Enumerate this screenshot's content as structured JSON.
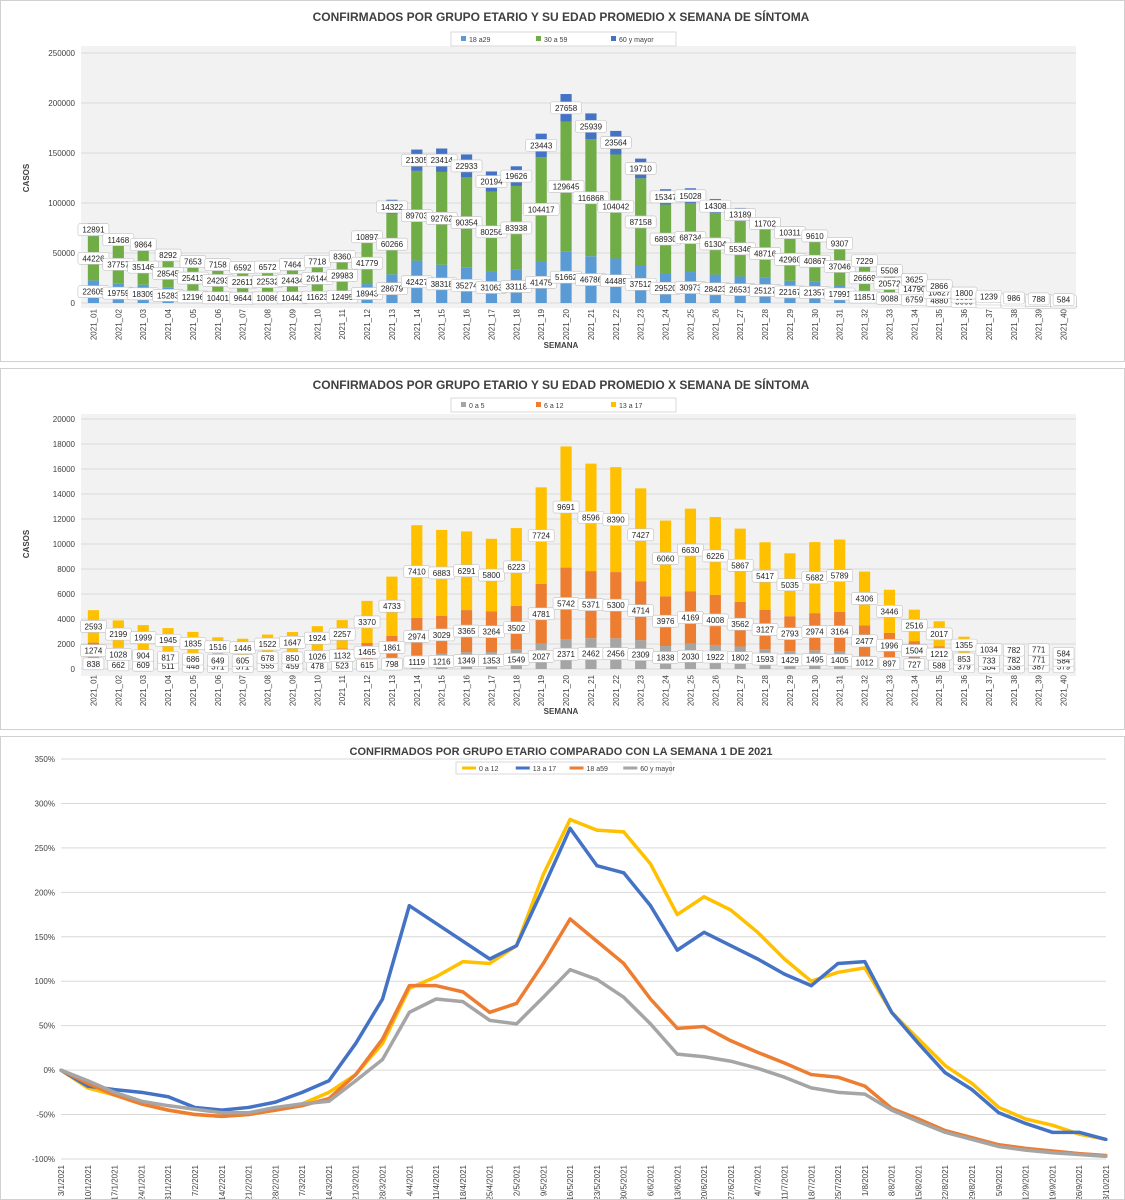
{
  "chart_data": [
    {
      "type": "bar",
      "stacked": true,
      "title": "CONFIRMADOS POR GRUPO ETARIO Y SU EDAD PROMEDIO X SEMANA DE SÍNTOMA",
      "xlabel": "SEMANA",
      "ylabel": "CASOS",
      "ylim": [
        0,
        250000
      ],
      "yticks": [
        "0",
        "50000",
        "100000",
        "150000",
        "200000",
        "250000"
      ],
      "grid": true,
      "legend_position": "top",
      "categories": [
        "2021_01",
        "2021_02",
        "2021_03",
        "2021_04",
        "2021_05",
        "2021_06",
        "2021_07",
        "2021_08",
        "2021_09",
        "2021_10",
        "2021_11",
        "2021_12",
        "2021_13",
        "2021_14",
        "2021_15",
        "2021_16",
        "2021_17",
        "2021_18",
        "2021_19",
        "2021_20",
        "2021_21",
        "2021_22",
        "2021_23",
        "2021_24",
        "2021_25",
        "2021_26",
        "2021_27",
        "2021_28",
        "2021_29",
        "2021_30",
        "2021_31",
        "2021_32",
        "2021_33",
        "2021_34",
        "2021_35",
        "2021_36",
        "2021_37",
        "2021_38",
        "2021_39",
        "2021_40"
      ],
      "series": [
        {
          "name": "18 a29",
          "color": "#5b9bd5",
          "values": [
            22605,
            19759,
            18309,
            15283,
            12196,
            10401,
            9644,
            10086,
            10442,
            11623,
            12495,
            18943,
            28679,
            42427,
            38318,
            35274,
            31063,
            33118,
            41475,
            51662,
            46786,
            44489,
            37512,
            29520,
            30973,
            28423,
            26531,
            25127,
            22167,
            21357,
            17991,
            11851,
            9088,
            6759,
            4880,
            3000,
            2000,
            1500,
            1200,
            1000
          ]
        },
        {
          "name": "30 a 59",
          "color": "#70ad47",
          "values": [
            44226,
            37757,
            35146,
            28545,
            25413,
            24293,
            22611,
            22532,
            24434,
            26144,
            29983,
            41779,
            60266,
            89703,
            92762,
            90354,
            80256,
            83938,
            104417,
            129645,
            116868,
            104042,
            87158,
            68930,
            68734,
            61304,
            55346,
            48716,
            42960,
            40867,
            37046,
            26669,
            20572,
            14790,
            10827,
            6000,
            4000,
            3000,
            2500,
            2000
          ]
        },
        {
          "name": "60 y mayor",
          "color": "#4472c4",
          "values": [
            12891,
            11468,
            9864,
            8292,
            7653,
            7158,
            6592,
            6572,
            7464,
            7718,
            8360,
            10897,
            14322,
            21305,
            23414,
            22933,
            20194,
            19626,
            23443,
            27658,
            25939,
            23564,
            19710,
            15347,
            15028,
            14308,
            13189,
            11702,
            10311,
            9610,
            9307,
            7229,
            5508,
            3625,
            2866,
            1800,
            1239,
            986,
            788,
            584
          ]
        }
      ]
    },
    {
      "type": "bar",
      "stacked": true,
      "title": "CONFIRMADOS POR GRUPO ETARIO Y SU EDAD PROMEDIO X SEMANA DE SÍNTOMA",
      "xlabel": "SEMANA",
      "ylabel": "CASOS",
      "ylim": [
        0,
        20000
      ],
      "yticks": [
        "0",
        "2000",
        "4000",
        "6000",
        "8000",
        "10000",
        "12000",
        "14000",
        "16000",
        "18000",
        "20000"
      ],
      "grid": true,
      "legend_position": "top",
      "categories": [
        "2021_01",
        "2021_02",
        "2021_03",
        "2021_04",
        "2021_05",
        "2021_06",
        "2021_07",
        "2021_08",
        "2021_09",
        "2021_10",
        "2021_11",
        "2021_12",
        "2021_13",
        "2021_14",
        "2021_15",
        "2021_16",
        "2021_17",
        "2021_18",
        "2021_19",
        "2021_20",
        "2021_21",
        "2021_22",
        "2021_23",
        "2021_24",
        "2021_25",
        "2021_26",
        "2021_27",
        "2021_28",
        "2021_29",
        "2021_30",
        "2021_31",
        "2021_32",
        "2021_33",
        "2021_34",
        "2021_35",
        "2021_36",
        "2021_37",
        "2021_38",
        "2021_39",
        "2021_40"
      ],
      "series": [
        {
          "name": "0 a 5",
          "color": "#a5a5a5",
          "values": [
            838,
            662,
            609,
            511,
            448,
            371,
            371,
            555,
            459,
            478,
            523,
            615,
            798,
            1119,
            1216,
            1349,
            1353,
            1549,
            2027,
            2371,
            2462,
            2456,
            2309,
            1838,
            2030,
            1922,
            1802,
            1593,
            1429,
            1495,
            1405,
            1012,
            897,
            727,
            588,
            379,
            304,
            338,
            387,
            379
          ]
        },
        {
          "name": "6 a 12",
          "color": "#ed7d31",
          "values": [
            1274,
            1028,
            904,
            817,
            686,
            649,
            605,
            678,
            850,
            1026,
            1132,
            1465,
            1861,
            2974,
            3029,
            3365,
            3264,
            3502,
            4781,
            5742,
            5371,
            5300,
            4714,
            3976,
            4169,
            4008,
            3562,
            3127,
            2793,
            2974,
            3164,
            2477,
            1996,
            1504,
            1212,
            853,
            733,
            782,
            771,
            584
          ]
        },
        {
          "name": "13 a 17",
          "color": "#ffc000",
          "values": [
            2593,
            2199,
            1999,
            1945,
            1835,
            1516,
            1446,
            1522,
            1647,
            1924,
            2257,
            3370,
            4733,
            7410,
            6883,
            6291,
            5800,
            6223,
            7724,
            9691,
            8596,
            8390,
            7427,
            6060,
            6630,
            6226,
            5867,
            5417,
            5035,
            5682,
            5789,
            4306,
            3446,
            2516,
            2017,
            1355,
            1034,
            782,
            771,
            584
          ]
        }
      ]
    },
    {
      "type": "line",
      "title": "CONFIRMADOS POR GRUPO ETARIO COMPARADO CON LA SEMANA 1 DE 2021",
      "ylim": [
        -100,
        350
      ],
      "yticks": [
        "-100%",
        "-50%",
        "0%",
        "50%",
        "100%",
        "150%",
        "200%",
        "250%",
        "300%",
        "350%"
      ],
      "grid": true,
      "legend_position": "top",
      "x": [
        "3/1/2021",
        "10/1/2021",
        "17/1/2021",
        "24/1/2021",
        "31/1/2021",
        "7/2/2021",
        "14/2/2021",
        "21/2/2021",
        "28/2/2021",
        "7/3/2021",
        "14/3/2021",
        "21/3/2021",
        "28/3/2021",
        "4/4/2021",
        "11/4/2021",
        "18/4/2021",
        "25/4/2021",
        "2/5/2021",
        "9/5/2021",
        "16/5/2021",
        "23/5/2021",
        "30/5/2021",
        "6/6/2021",
        "13/6/2021",
        "20/6/2021",
        "27/6/2021",
        "4/7/2021",
        "11/7/2021",
        "18/7/2021",
        "25/7/2021",
        "1/8/2021",
        "8/8/2021",
        "15/8/2021",
        "22/8/2021",
        "29/8/2021",
        "5/9/2021",
        "12/9/2021",
        "19/9/2021",
        "26/9/2021",
        "3/10/2021"
      ],
      "series": [
        {
          "name": "0 a 12",
          "color": "#ffc000",
          "values": [
            0,
            -20,
            -28,
            -38,
            -45,
            -50,
            -52,
            -50,
            -45,
            -38,
            -25,
            -5,
            30,
            92,
            105,
            122,
            120,
            140,
            220,
            282,
            270,
            268,
            232,
            175,
            195,
            180,
            155,
            125,
            100,
            110,
            115,
            65,
            35,
            5,
            -15,
            -42,
            -55,
            -62,
            -72,
            -78
          ]
        },
        {
          "name": "13 a 17",
          "color": "#4472c4",
          "values": [
            0,
            -18,
            -22,
            -25,
            -30,
            -42,
            -45,
            -42,
            -36,
            -25,
            -12,
            30,
            80,
            185,
            165,
            145,
            125,
            140,
            205,
            272,
            230,
            222,
            185,
            135,
            155,
            140,
            125,
            108,
            95,
            120,
            122,
            65,
            30,
            -3,
            -22,
            -48,
            -60,
            -70,
            -70,
            -78
          ]
        },
        {
          "name": "18 a59",
          "color": "#ed7d31",
          "values": [
            0,
            -15,
            -28,
            -38,
            -45,
            -50,
            -52,
            -50,
            -45,
            -40,
            -32,
            -5,
            35,
            95,
            95,
            88,
            65,
            75,
            120,
            170,
            145,
            120,
            80,
            47,
            49,
            33,
            20,
            8,
            -5,
            -8,
            -18,
            -43,
            -55,
            -68,
            -76,
            -84,
            -88,
            -91,
            -94,
            -96
          ]
        },
        {
          "name": "60 y mayor",
          "color": "#a5a5a5",
          "values": [
            0,
            -12,
            -25,
            -35,
            -40,
            -44,
            -48,
            -48,
            -42,
            -38,
            -35,
            -12,
            12,
            65,
            80,
            77,
            56,
            52,
            82,
            113,
            102,
            82,
            52,
            18,
            15,
            10,
            2,
            -8,
            -20,
            -25,
            -27,
            -45,
            -58,
            -70,
            -78,
            -86,
            -90,
            -93,
            -95,
            -97
          ]
        }
      ]
    }
  ]
}
